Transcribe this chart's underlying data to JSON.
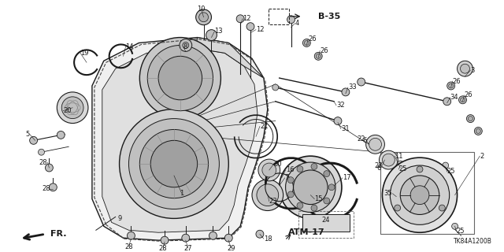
{
  "bg_color": "#ffffff",
  "fig_width": 6.4,
  "fig_height": 3.2,
  "dpi": 100,
  "line_color": "#1a1a1a",
  "label_fontsize": 6.0,
  "watermark": "TK84A1200B",
  "ref_b35": "B-35",
  "ref_atm17": "ATM-17",
  "ref_fr": "FR."
}
